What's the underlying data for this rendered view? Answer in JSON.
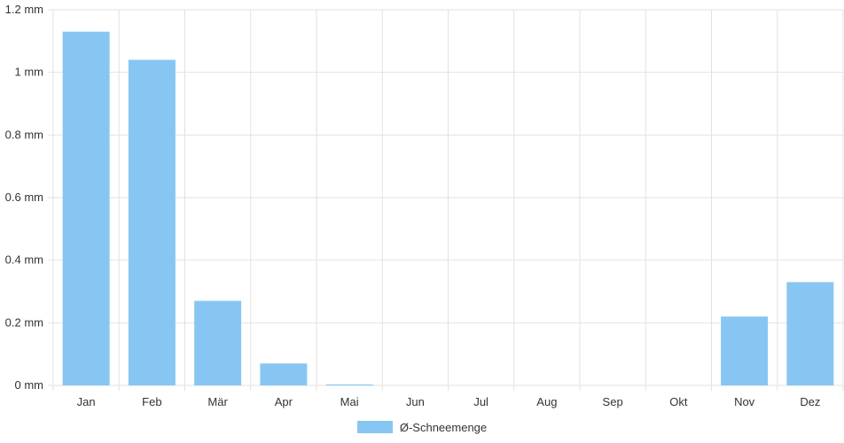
{
  "chart_data": {
    "type": "bar",
    "categories": [
      "Jan",
      "Feb",
      "Mär",
      "Apr",
      "Mai",
      "Jun",
      "Jul",
      "Aug",
      "Sep",
      "Okt",
      "Nov",
      "Dez"
    ],
    "series": [
      {
        "name": "Ø-Schneemenge",
        "values": [
          1.13,
          1.04,
          0.27,
          0.07,
          0.003,
          0,
          0,
          0,
          0,
          0,
          0.22,
          0.33
        ]
      }
    ],
    "y_ticks": [
      "0 mm",
      "0.2 mm",
      "0.4 mm",
      "0.6 mm",
      "0.8 mm",
      "1 mm",
      "1.2 mm"
    ],
    "ylim": [
      0,
      1.2
    ],
    "grid": true,
    "legend_position": "bottom",
    "bar_color": "#87c6f3",
    "grid_color": "#e2e2e2"
  }
}
